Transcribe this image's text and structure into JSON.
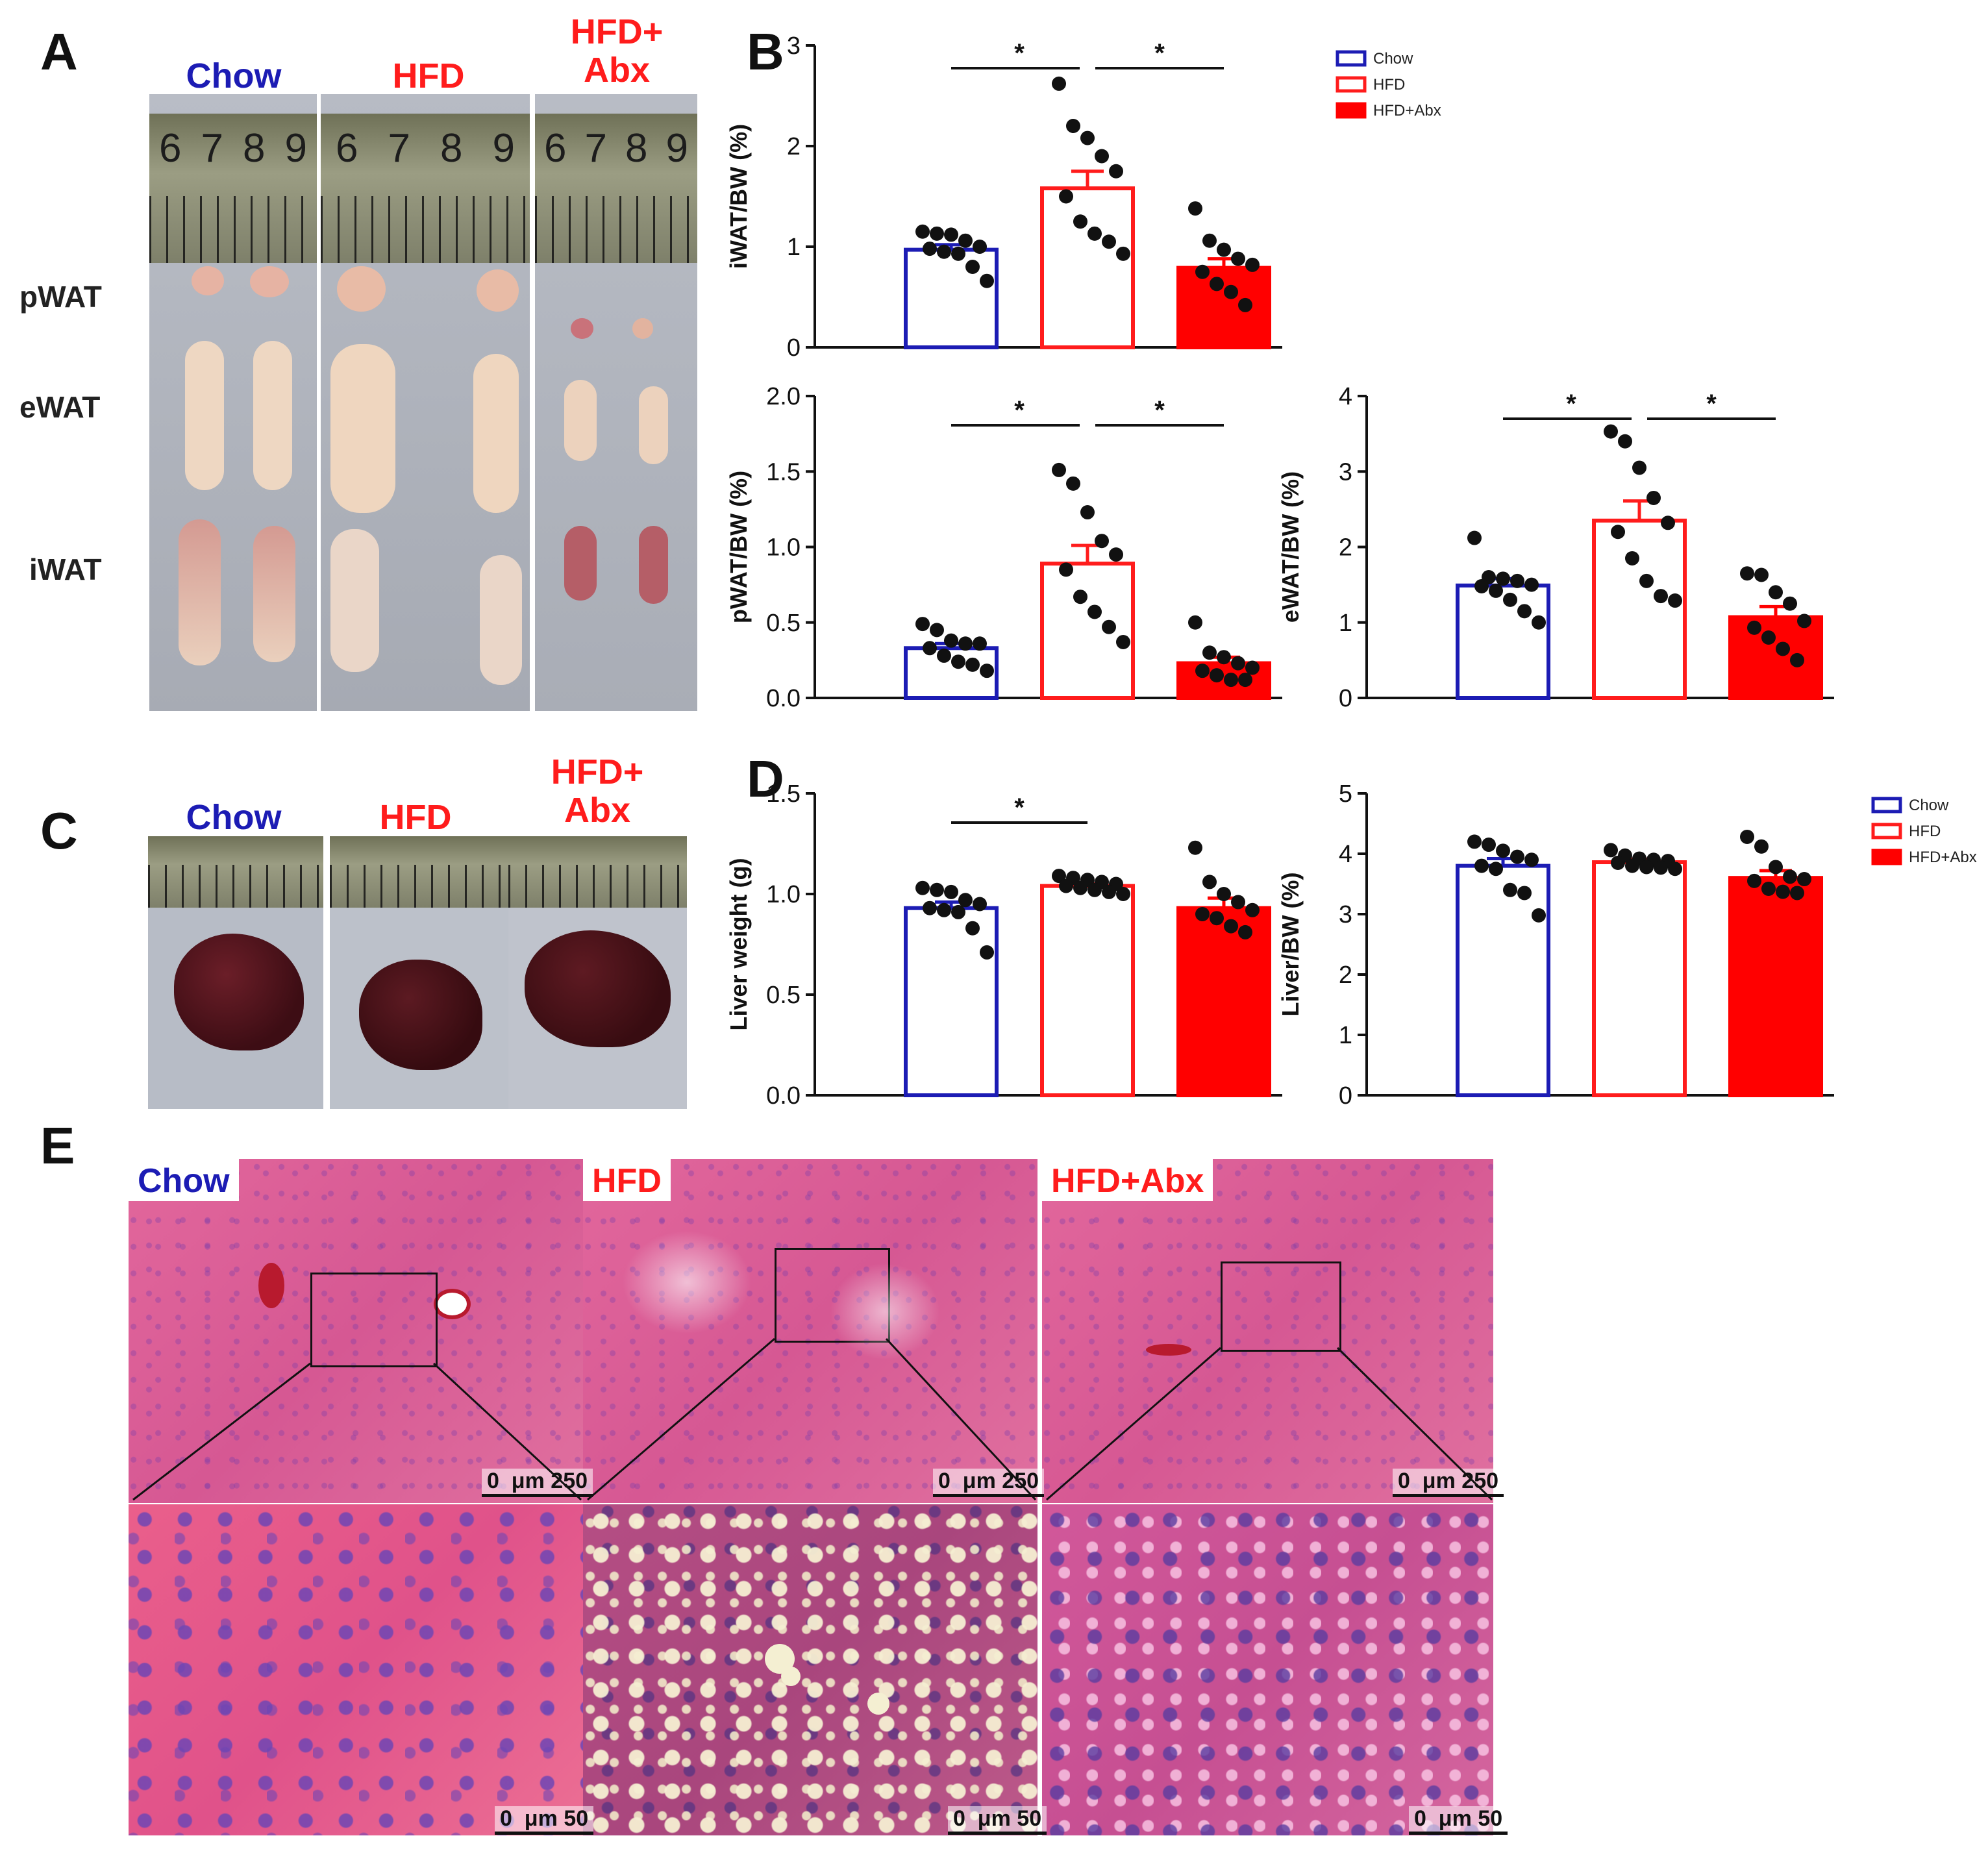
{
  "panels": {
    "A": "A",
    "B": "B",
    "C": "C",
    "D": "D",
    "E": "E"
  },
  "colors": {
    "chow": "#1c1cb4",
    "hfd": "#ff1c1c",
    "abx": "#ff0000"
  },
  "panel_a": {
    "groups": [
      "Chow",
      "HFD",
      "HFD+\nAbx"
    ],
    "tissues": [
      "pWAT",
      "eWAT",
      "iWAT"
    ],
    "ruler_numbers": [
      [
        "6",
        "7",
        "8",
        "9"
      ],
      [
        "6",
        "7",
        "8",
        "9"
      ],
      [
        "6",
        "7",
        "8",
        "9"
      ]
    ]
  },
  "panel_c": {
    "groups": [
      "Chow",
      "HFD",
      "HFD+\nAbx"
    ]
  },
  "panel_e": {
    "groups": [
      "Chow",
      "HFD",
      "HFD+Abx"
    ],
    "scale_top": "0  μm 250",
    "scale_bottom": "0  μm 50"
  },
  "chart_data": [
    {
      "id": "iwat",
      "type": "bar",
      "ylabel": "iWAT/BW (%)",
      "ylim": [
        0,
        3
      ],
      "yticks": [
        "0",
        "1",
        "2",
        "3"
      ],
      "categories": [
        "Chow",
        "HFD",
        "HFD+Abx"
      ],
      "values": [
        0.97,
        1.58,
        0.79
      ],
      "sem": [
        0.05,
        0.17,
        0.09
      ],
      "points": [
        [
          1.15,
          1.13,
          1.12,
          1.06,
          1.0,
          0.98,
          0.95,
          0.93,
          0.8,
          0.66
        ],
        [
          2.62,
          2.2,
          2.08,
          1.9,
          1.75,
          1.5,
          1.25,
          1.13,
          1.05,
          0.93
        ],
        [
          1.38,
          1.06,
          0.97,
          0.88,
          0.82,
          0.75,
          0.63,
          0.55,
          0.42
        ]
      ],
      "significance": [
        {
          "from": 0,
          "to": 1,
          "label": "*"
        },
        {
          "from": 1,
          "to": 2,
          "label": "*"
        }
      ],
      "legend": [
        "Chow",
        "HFD",
        "HFD+Abx"
      ]
    },
    {
      "id": "pwat",
      "type": "bar",
      "ylabel": "pWAT/BW (%)",
      "ylim": [
        0,
        2
      ],
      "yticks": [
        "0.0",
        "0.5",
        "1.0",
        "1.5",
        "2.0"
      ],
      "categories": [
        "Chow",
        "HFD",
        "HFD+Abx"
      ],
      "values": [
        0.33,
        0.89,
        0.23
      ],
      "sem": [
        0.03,
        0.12,
        0.04
      ],
      "points": [
        [
          0.49,
          0.45,
          0.38,
          0.36,
          0.36,
          0.33,
          0.28,
          0.24,
          0.22,
          0.18
        ],
        [
          1.51,
          1.42,
          1.23,
          1.04,
          0.95,
          0.85,
          0.67,
          0.57,
          0.47,
          0.37
        ],
        [
          0.5,
          0.3,
          0.27,
          0.23,
          0.2,
          0.18,
          0.15,
          0.12,
          0.12
        ]
      ],
      "significance": [
        {
          "from": 0,
          "to": 1,
          "label": "*"
        },
        {
          "from": 1,
          "to": 2,
          "label": "*"
        }
      ]
    },
    {
      "id": "ewat",
      "type": "bar",
      "ylabel": "eWAT/BW (%)",
      "ylim": [
        0,
        4
      ],
      "yticks": [
        "0",
        "1",
        "2",
        "3",
        "4"
      ],
      "categories": [
        "Chow",
        "HFD",
        "HFD+Abx"
      ],
      "values": [
        1.49,
        2.35,
        1.07
      ],
      "sem": [
        0.09,
        0.26,
        0.14
      ],
      "points": [
        [
          2.12,
          1.6,
          1.58,
          1.55,
          1.5,
          1.48,
          1.42,
          1.3,
          1.15,
          1.0
        ],
        [
          3.53,
          3.4,
          3.05,
          2.65,
          2.32,
          2.2,
          1.85,
          1.55,
          1.35,
          1.29
        ],
        [
          1.65,
          1.63,
          1.4,
          1.25,
          1.02,
          0.93,
          0.8,
          0.65,
          0.5
        ]
      ],
      "significance": [
        {
          "from": 0,
          "to": 1,
          "label": "*"
        },
        {
          "from": 1,
          "to": 2,
          "label": "*"
        }
      ]
    },
    {
      "id": "liver_weight",
      "type": "bar",
      "ylabel": "Liver weight (g)",
      "ylim": [
        0,
        1.5
      ],
      "yticks": [
        "0.0",
        "0.5",
        "1.0",
        "1.5"
      ],
      "categories": [
        "Chow",
        "HFD",
        "HFD+Abx"
      ],
      "values": [
        0.93,
        1.04,
        0.93
      ],
      "sem": [
        0.03,
        0.01,
        0.05
      ],
      "points": [
        [
          1.03,
          1.02,
          1.01,
          0.97,
          0.95,
          0.93,
          0.92,
          0.91,
          0.83,
          0.71
        ],
        [
          1.09,
          1.08,
          1.07,
          1.06,
          1.05,
          1.04,
          1.03,
          1.02,
          1.01,
          1.0
        ],
        [
          1.23,
          1.06,
          1.0,
          0.96,
          0.92,
          0.9,
          0.88,
          0.84,
          0.81
        ]
      ],
      "significance": [
        {
          "from": 0,
          "to": 1,
          "label": "*"
        }
      ]
    },
    {
      "id": "liver_bw",
      "type": "bar",
      "ylabel": "Liver/BW (%)",
      "ylim": [
        0,
        5
      ],
      "yticks": [
        "0",
        "1",
        "2",
        "3",
        "4",
        "5"
      ],
      "categories": [
        "Chow",
        "HFD",
        "HFD+Abx"
      ],
      "values": [
        3.8,
        3.86,
        3.6
      ],
      "sem": [
        0.12,
        0.05,
        0.12
      ],
      "points": [
        [
          4.2,
          4.15,
          4.05,
          3.95,
          3.9,
          3.8,
          3.75,
          3.4,
          3.35,
          2.98
        ],
        [
          4.06,
          3.97,
          3.92,
          3.9,
          3.88,
          3.85,
          3.8,
          3.78,
          3.77,
          3.75
        ],
        [
          4.28,
          4.12,
          3.78,
          3.62,
          3.58,
          3.55,
          3.42,
          3.37,
          3.35
        ]
      ],
      "significance": [],
      "legend": [
        "Chow",
        "HFD",
        "HFD+Abx"
      ]
    }
  ]
}
